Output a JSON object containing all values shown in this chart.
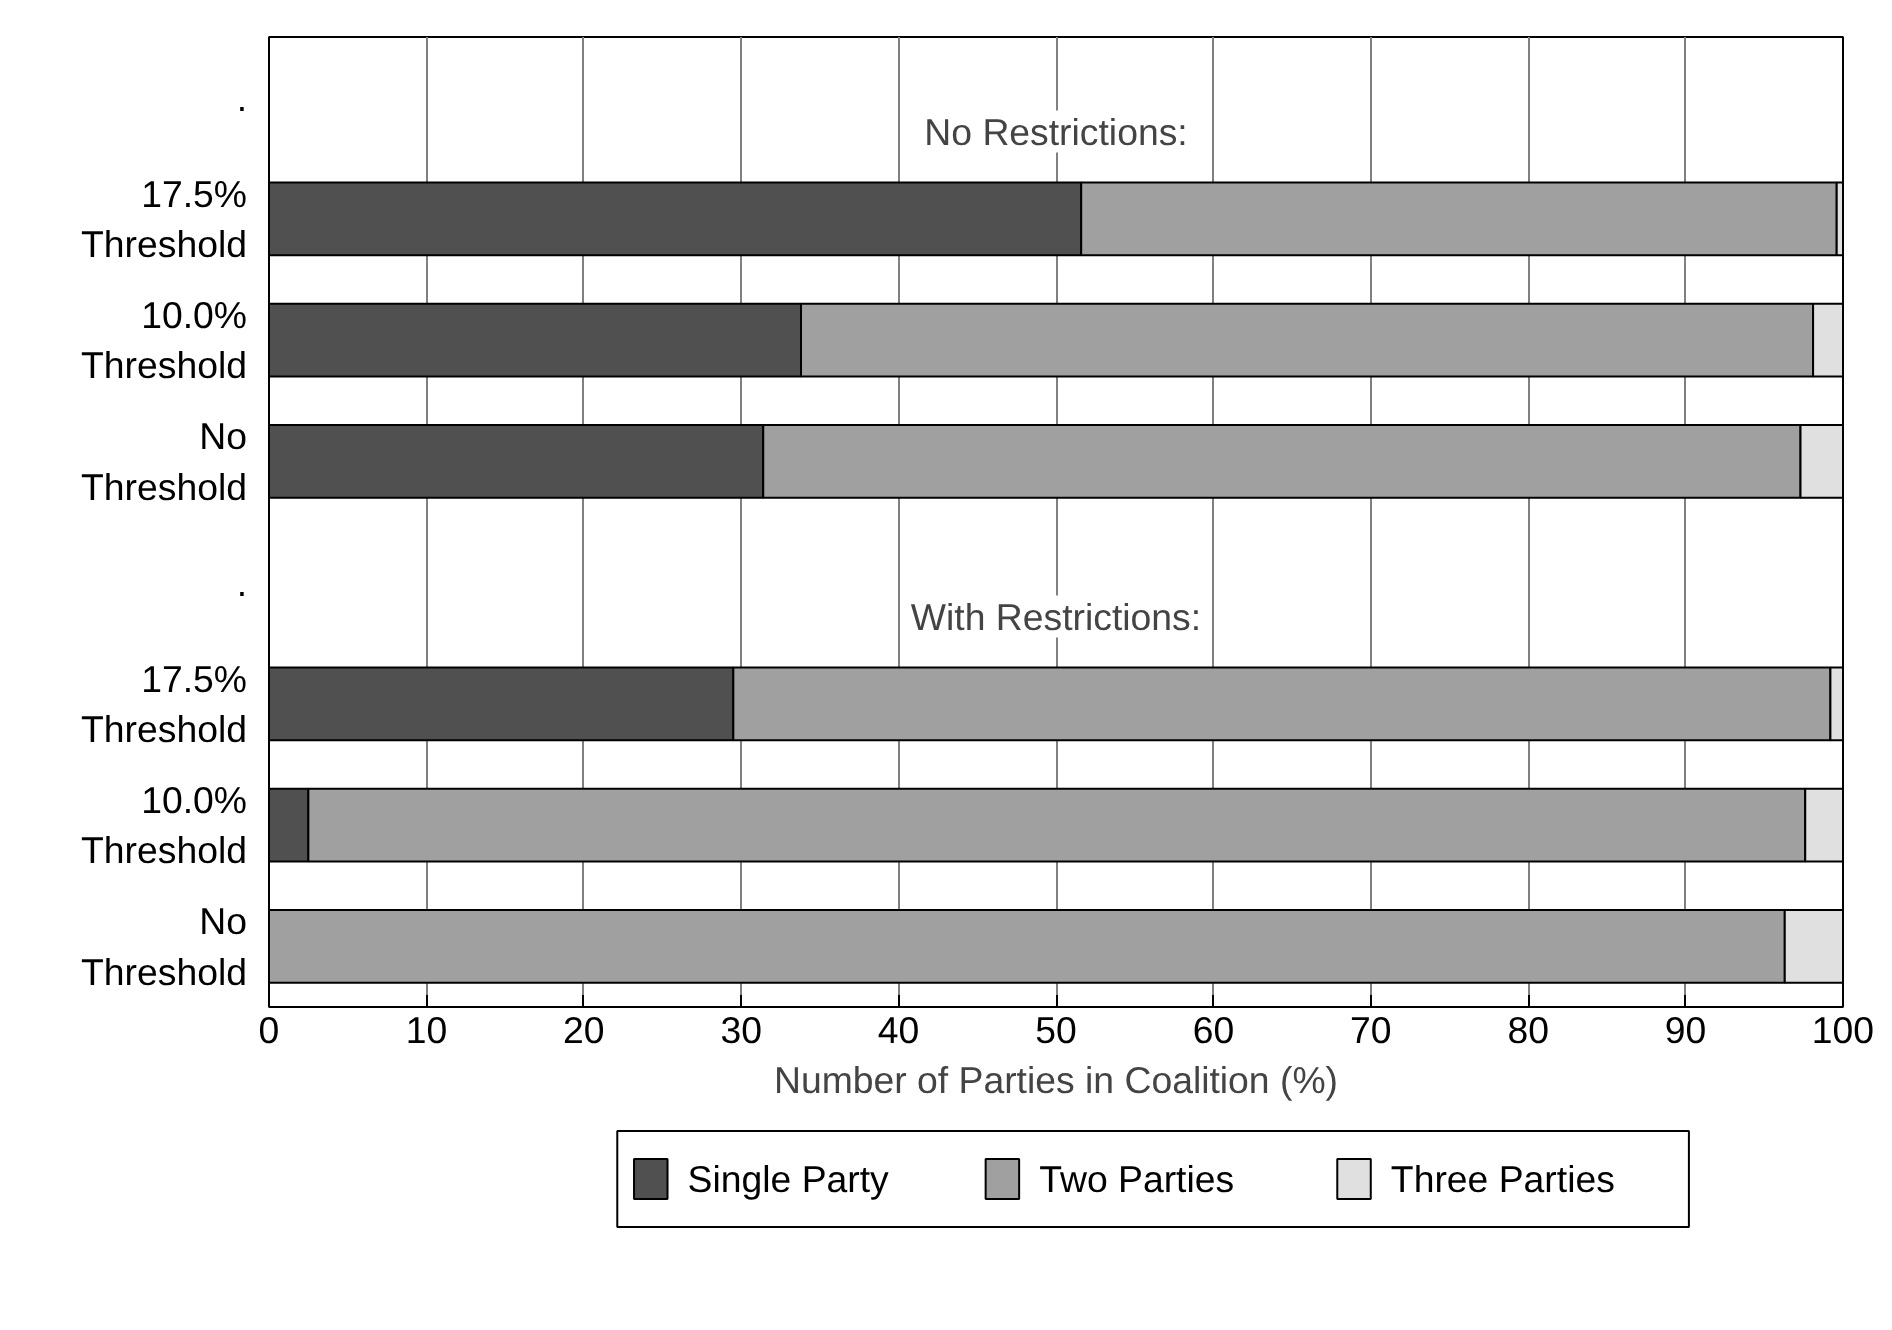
{
  "chart_data": {
    "type": "bar",
    "orientation": "horizontal",
    "stacked": true,
    "xlabel": "Number of Parties in Coalition (%)",
    "categories": [
      ".",
      "17.5%\nThreshold",
      "10.0%\nThreshold",
      "No\nThreshold",
      ".",
      "17.5%\nThreshold",
      "10.0%\nThreshold",
      "No\nThreshold"
    ],
    "series": [
      {
        "name": "Single Party",
        "color": "#505050",
        "values": [
          null,
          51.6,
          33.8,
          31.4,
          null,
          29.5,
          2.5,
          0
        ]
      },
      {
        "name": "Two Parties",
        "color": "#a0a0a0",
        "values": [
          null,
          48.0,
          64.3,
          65.9,
          null,
          69.7,
          95.1,
          96.3
        ]
      },
      {
        "name": "Three Parties",
        "color": "#e0e0e0",
        "values": [
          null,
          0.4,
          1.9,
          2.7,
          null,
          0.8,
          2.4,
          3.7
        ]
      }
    ],
    "annotations": [
      "No Restrictions:",
      "With Restrictions:"
    ],
    "xlim": [
      0,
      100
    ],
    "xticks": [
      0,
      10,
      20,
      30,
      40,
      50,
      60,
      70,
      80,
      90,
      100
    ],
    "grid": "x",
    "legend": "bottom"
  }
}
